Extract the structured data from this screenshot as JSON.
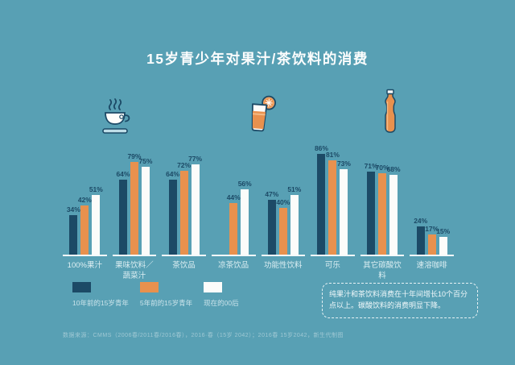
{
  "title": "15岁青少年对果汁/茶饮料的消费",
  "colors": {
    "background": "#58A0B4",
    "navy": "#1C4A66",
    "orange": "#E8914E",
    "white_bar": "#FCFCFA",
    "value_label": "#1C4A66"
  },
  "icons": {
    "left": "tea-cup-icon",
    "middle": "juice-glass-icon",
    "right": "soda-bottle-icon"
  },
  "chart_data": {
    "type": "bar",
    "title": "15岁青少年对果汁/茶饮料的消费",
    "categories": [
      "100%果汁",
      "果味饮料／蔬菜汁",
      "茶饮品",
      "凉茶饮品",
      "功能性饮料",
      "可乐",
      "其它碳酸饮料",
      "速溶咖啡"
    ],
    "series": [
      {
        "name": "10年前的15岁青年",
        "color": "#1C4A66",
        "values": [
          34,
          64,
          64,
          null,
          47,
          86,
          71,
          24
        ]
      },
      {
        "name": "5年前的15岁青年",
        "color": "#E8914E",
        "values": [
          42,
          79,
          72,
          44,
          40,
          81,
          70,
          17
        ]
      },
      {
        "name": "现在的00后",
        "color": "#FCFCFA",
        "values": [
          51,
          75,
          77,
          56,
          51,
          73,
          68,
          15
        ]
      }
    ],
    "value_suffix": "%",
    "ylim": [
      0,
      100
    ],
    "grid": false,
    "legend_position": "bottom-left",
    "value_labels": true
  },
  "note": {
    "text": "纯果汁和茶饮料消费在十年间增长10个百分点以上。碳酸饮料的消费明显下降。"
  },
  "footer": {
    "source": "数据来源：CMMS（2006春/2011春/2016春），2016·春（15岁 2042）；2016春 15岁2042，新生代制图"
  }
}
